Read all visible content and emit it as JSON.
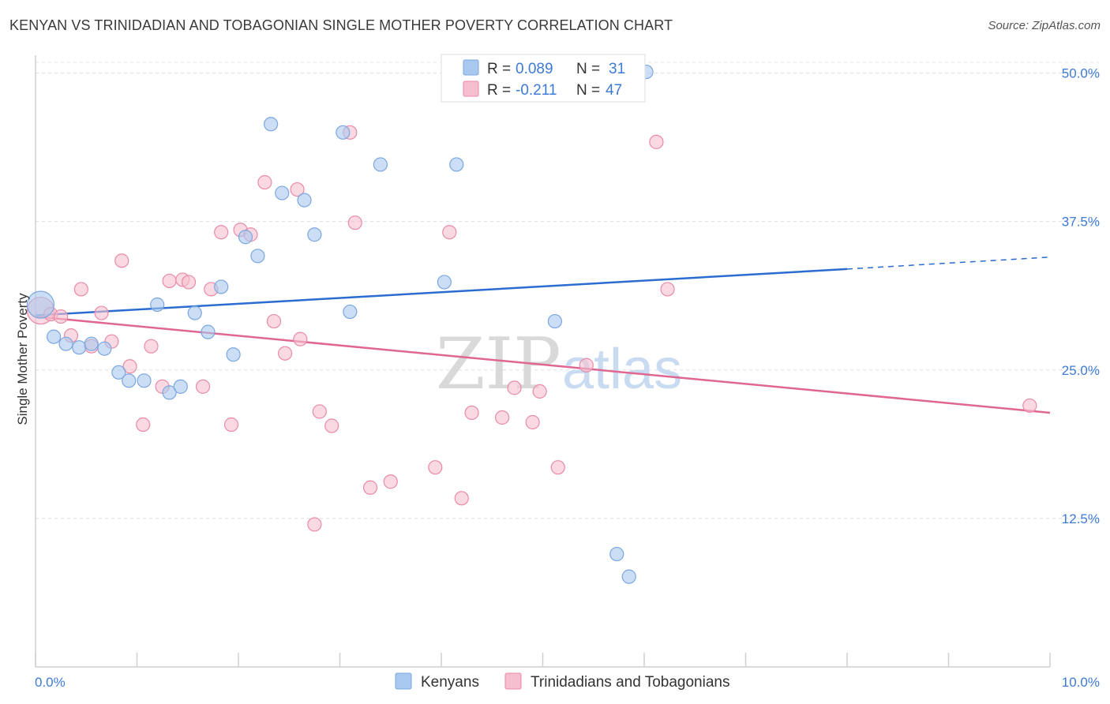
{
  "title": "KENYAN VS TRINIDADIAN AND TOBAGONIAN SINGLE MOTHER POVERTY CORRELATION CHART",
  "source": "Source: ZipAtlas.com",
  "watermark": {
    "zip": "ZIP",
    "atlas": "atlas"
  },
  "colors": {
    "kenyan": "#a9c8ef",
    "kenyan_stroke": "#7aa7e0",
    "kenyan_line": "#2a6ccf",
    "trini": "#f6bfcf",
    "trini_stroke": "#e98aa6",
    "trini_line": "#e06792",
    "tick_text": "#3d7ad6"
  },
  "legend": {
    "kenyan": {
      "r_label": "R =",
      "r_value": "0.089",
      "n_label": "N =",
      "n_value": "31"
    },
    "trini": {
      "r_label": "R =",
      "r_value": "-0.211",
      "n_label": "N =",
      "n_value": "47"
    }
  },
  "chart_data": {
    "type": "scatter",
    "title": "KENYAN VS TRINIDADIAN AND TOBAGONIAN SINGLE MOTHER POVERTY CORRELATION CHART",
    "xlabel": "",
    "ylabel": "Single Mother Poverty",
    "xlim": [
      0,
      10
    ],
    "ylim": [
      0,
      51.5
    ],
    "x_tick_labels": [
      "0.0%",
      "10.0%"
    ],
    "y_ticks": [
      12.5,
      25.0,
      37.5,
      50.0
    ],
    "y_tick_labels": [
      "12.5%",
      "25.0%",
      "37.5%",
      "50.0%"
    ],
    "grid": true,
    "legend_position": "top-center",
    "series": [
      {
        "name": "Kenyans",
        "points": [
          {
            "x": 0.05,
            "y": 30.5,
            "big": true
          },
          {
            "x": 0.18,
            "y": 27.8
          },
          {
            "x": 0.3,
            "y": 27.2
          },
          {
            "x": 0.43,
            "y": 26.9
          },
          {
            "x": 0.55,
            "y": 27.2
          },
          {
            "x": 0.68,
            "y": 26.8
          },
          {
            "x": 0.82,
            "y": 24.8
          },
          {
            "x": 0.92,
            "y": 24.1
          },
          {
            "x": 1.07,
            "y": 24.1
          },
          {
            "x": 1.2,
            "y": 30.5
          },
          {
            "x": 1.32,
            "y": 23.1
          },
          {
            "x": 1.43,
            "y": 23.6
          },
          {
            "x": 1.57,
            "y": 29.8
          },
          {
            "x": 1.7,
            "y": 28.2
          },
          {
            "x": 1.83,
            "y": 32.0
          },
          {
            "x": 1.95,
            "y": 26.3
          },
          {
            "x": 2.07,
            "y": 36.2
          },
          {
            "x": 2.19,
            "y": 34.6
          },
          {
            "x": 2.32,
            "y": 45.7
          },
          {
            "x": 2.43,
            "y": 39.9
          },
          {
            "x": 2.65,
            "y": 39.3
          },
          {
            "x": 2.75,
            "y": 36.4
          },
          {
            "x": 3.03,
            "y": 45.0
          },
          {
            "x": 3.1,
            "y": 29.9
          },
          {
            "x": 3.4,
            "y": 42.3
          },
          {
            "x": 4.03,
            "y": 32.4
          },
          {
            "x": 4.15,
            "y": 42.3
          },
          {
            "x": 5.12,
            "y": 29.1
          },
          {
            "x": 5.73,
            "y": 9.5
          },
          {
            "x": 5.85,
            "y": 7.6
          },
          {
            "x": 6.02,
            "y": 50.1
          }
        ],
        "trend": {
          "x0": 0,
          "y0": 29.6,
          "x1": 8.0,
          "y1": 33.5,
          "dash_to_x": 10.0,
          "dash_to_y": 34.5
        }
      },
      {
        "name": "Trinidadians and Tobagonians",
        "points": [
          {
            "x": 0.05,
            "y": 30.0,
            "big": true
          },
          {
            "x": 0.15,
            "y": 29.7
          },
          {
            "x": 0.25,
            "y": 29.5
          },
          {
            "x": 0.35,
            "y": 27.9
          },
          {
            "x": 0.45,
            "y": 31.8
          },
          {
            "x": 0.55,
            "y": 27.0
          },
          {
            "x": 0.65,
            "y": 29.8
          },
          {
            "x": 0.75,
            "y": 27.4
          },
          {
            "x": 0.85,
            "y": 34.2
          },
          {
            "x": 0.93,
            "y": 25.3
          },
          {
            "x": 1.06,
            "y": 20.4
          },
          {
            "x": 1.14,
            "y": 27.0
          },
          {
            "x": 1.25,
            "y": 23.6
          },
          {
            "x": 1.32,
            "y": 32.5
          },
          {
            "x": 1.45,
            "y": 32.6
          },
          {
            "x": 1.51,
            "y": 32.4
          },
          {
            "x": 1.65,
            "y": 23.6
          },
          {
            "x": 1.73,
            "y": 31.8
          },
          {
            "x": 1.83,
            "y": 36.6
          },
          {
            "x": 1.93,
            "y": 20.4
          },
          {
            "x": 2.02,
            "y": 36.8
          },
          {
            "x": 2.12,
            "y": 36.4
          },
          {
            "x": 2.26,
            "y": 40.8
          },
          {
            "x": 2.35,
            "y": 29.1
          },
          {
            "x": 2.46,
            "y": 26.4
          },
          {
            "x": 2.58,
            "y": 40.2
          },
          {
            "x": 2.61,
            "y": 27.6
          },
          {
            "x": 2.75,
            "y": 12.0
          },
          {
            "x": 2.8,
            "y": 21.5
          },
          {
            "x": 2.92,
            "y": 20.3
          },
          {
            "x": 3.1,
            "y": 45.0
          },
          {
            "x": 3.15,
            "y": 37.4
          },
          {
            "x": 3.3,
            "y": 15.1
          },
          {
            "x": 3.5,
            "y": 15.6
          },
          {
            "x": 3.94,
            "y": 16.8
          },
          {
            "x": 4.08,
            "y": 36.6
          },
          {
            "x": 4.2,
            "y": 14.2
          },
          {
            "x": 4.3,
            "y": 21.4
          },
          {
            "x": 4.6,
            "y": 21.0
          },
          {
            "x": 4.72,
            "y": 23.5
          },
          {
            "x": 4.9,
            "y": 20.6
          },
          {
            "x": 4.97,
            "y": 23.2
          },
          {
            "x": 5.15,
            "y": 16.8
          },
          {
            "x": 5.43,
            "y": 25.4
          },
          {
            "x": 6.12,
            "y": 44.2
          },
          {
            "x": 6.23,
            "y": 31.8
          },
          {
            "x": 9.8,
            "y": 22.0
          }
        ],
        "trend": {
          "x0": 0,
          "y0": 29.5,
          "x1": 10.0,
          "y1": 21.4
        }
      }
    ]
  }
}
